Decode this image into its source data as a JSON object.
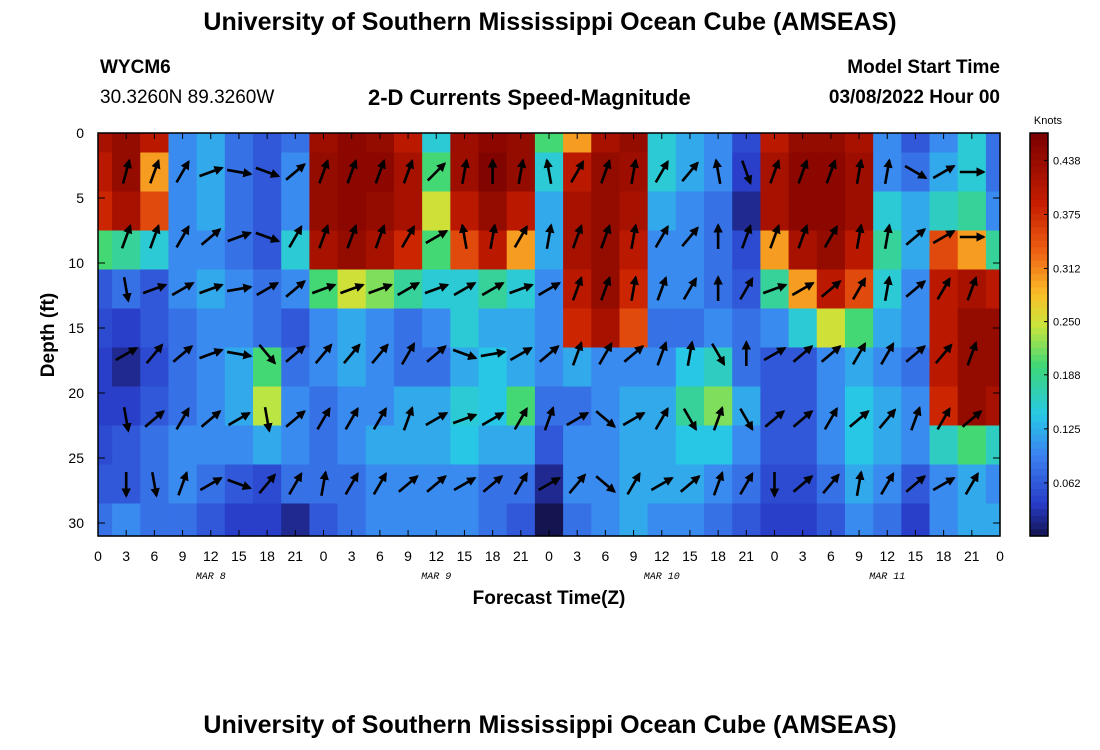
{
  "header": {
    "title": "University of Southern Mississippi Ocean Cube (AMSEAS)",
    "station_id": "WYCM6",
    "station_coords": "30.3260N  89.3260W",
    "subtitle": "2-D Currents Speed-Magnitude",
    "model_start_label": "Model Start Time",
    "model_start_value": "03/08/2022 Hour 00"
  },
  "footer": {
    "title": "University of Southern Mississippi Ocean Cube (AMSEAS)"
  },
  "chart_data": {
    "type": "heatmap",
    "xlabel": "Forecast Time(Z)",
    "ylabel": "Depth (ft)",
    "x_tick_labels": [
      "0",
      "3",
      "6",
      "9",
      "12",
      "15",
      "18",
      "21",
      "0",
      "3",
      "6",
      "9",
      "12",
      "15",
      "18",
      "21",
      "0",
      "3",
      "6",
      "9",
      "12",
      "15",
      "18",
      "21",
      "0",
      "3",
      "6",
      "9",
      "12",
      "15",
      "18",
      "21",
      "0"
    ],
    "day_labels": [
      "MAR 8",
      "MAR 9",
      "MAR 10",
      "MAR 11"
    ],
    "xlim_hours": [
      0,
      96
    ],
    "ylim_ft": [
      0,
      31
    ],
    "y_ticks": [
      "0",
      "5",
      "10",
      "15",
      "20",
      "25",
      "30"
    ],
    "colorbar": {
      "unit": "Knots",
      "ticks": [
        "0.438",
        "0.375",
        "0.312",
        "0.250",
        "0.188",
        "0.125",
        "0.062"
      ],
      "range": [
        0,
        0.47
      ]
    },
    "speed_field": {
      "hours": [
        0,
        3,
        6,
        9,
        12,
        15,
        18,
        21,
        24,
        27,
        30,
        33,
        36,
        39,
        42,
        45,
        48,
        51,
        54,
        57,
        60,
        63,
        66,
        69,
        72,
        75,
        78,
        81,
        84,
        87,
        90,
        93,
        96
      ],
      "depths_ft": [
        0,
        3,
        6,
        9,
        12,
        15,
        18,
        21,
        24,
        27,
        30
      ],
      "values": [
        [
          0.42,
          0.44,
          0.4,
          0.1,
          0.12,
          0.08,
          0.06,
          0.08,
          0.43,
          0.45,
          0.44,
          0.4,
          0.15,
          0.43,
          0.45,
          0.44,
          0.2,
          0.3,
          0.42,
          0.44,
          0.15,
          0.12,
          0.1,
          0.05,
          0.4,
          0.44,
          0.44,
          0.42,
          0.1,
          0.06,
          0.1,
          0.15,
          0.08
        ],
        [
          0.4,
          0.44,
          0.3,
          0.1,
          0.12,
          0.08,
          0.06,
          0.1,
          0.44,
          0.45,
          0.45,
          0.42,
          0.2,
          0.43,
          0.46,
          0.44,
          0.15,
          0.4,
          0.44,
          0.43,
          0.15,
          0.12,
          0.1,
          0.04,
          0.42,
          0.45,
          0.45,
          0.43,
          0.1,
          0.08,
          0.12,
          0.15,
          0.08
        ],
        [
          0.38,
          0.42,
          0.35,
          0.1,
          0.12,
          0.08,
          0.06,
          0.1,
          0.44,
          0.45,
          0.44,
          0.42,
          0.25,
          0.4,
          0.44,
          0.4,
          0.12,
          0.42,
          0.44,
          0.42,
          0.12,
          0.1,
          0.08,
          0.02,
          0.42,
          0.45,
          0.45,
          0.43,
          0.15,
          0.12,
          0.16,
          0.18,
          0.1
        ],
        [
          0.2,
          0.18,
          0.15,
          0.1,
          0.1,
          0.08,
          0.06,
          0.15,
          0.42,
          0.44,
          0.42,
          0.38,
          0.2,
          0.35,
          0.4,
          0.3,
          0.12,
          0.42,
          0.44,
          0.4,
          0.1,
          0.1,
          0.08,
          0.05,
          0.3,
          0.42,
          0.44,
          0.4,
          0.18,
          0.12,
          0.35,
          0.3,
          0.18
        ],
        [
          0.06,
          0.08,
          0.06,
          0.1,
          0.12,
          0.1,
          0.08,
          0.1,
          0.2,
          0.25,
          0.22,
          0.18,
          0.15,
          0.15,
          0.18,
          0.15,
          0.1,
          0.4,
          0.44,
          0.38,
          0.1,
          0.1,
          0.08,
          0.06,
          0.18,
          0.3,
          0.4,
          0.35,
          0.15,
          0.1,
          0.4,
          0.42,
          0.4
        ],
        [
          0.05,
          0.04,
          0.06,
          0.08,
          0.1,
          0.1,
          0.08,
          0.06,
          0.1,
          0.12,
          0.1,
          0.08,
          0.1,
          0.15,
          0.12,
          0.12,
          0.1,
          0.38,
          0.42,
          0.35,
          0.08,
          0.08,
          0.1,
          0.08,
          0.1,
          0.15,
          0.25,
          0.2,
          0.12,
          0.1,
          0.4,
          0.44,
          0.44
        ],
        [
          0.04,
          0.02,
          0.05,
          0.08,
          0.1,
          0.12,
          0.2,
          0.08,
          0.1,
          0.12,
          0.1,
          0.08,
          0.08,
          0.12,
          0.14,
          0.12,
          0.1,
          0.12,
          0.1,
          0.1,
          0.1,
          0.14,
          0.16,
          0.08,
          0.06,
          0.06,
          0.1,
          0.12,
          0.1,
          0.08,
          0.4,
          0.44,
          0.44
        ],
        [
          0.04,
          0.04,
          0.06,
          0.08,
          0.1,
          0.12,
          0.24,
          0.1,
          0.08,
          0.1,
          0.1,
          0.12,
          0.12,
          0.15,
          0.14,
          0.2,
          0.08,
          0.08,
          0.1,
          0.12,
          0.12,
          0.18,
          0.22,
          0.12,
          0.06,
          0.06,
          0.1,
          0.14,
          0.12,
          0.1,
          0.38,
          0.44,
          0.42
        ],
        [
          0.05,
          0.06,
          0.08,
          0.1,
          0.1,
          0.1,
          0.12,
          0.1,
          0.08,
          0.1,
          0.12,
          0.12,
          0.12,
          0.14,
          0.12,
          0.12,
          0.06,
          0.1,
          0.1,
          0.12,
          0.12,
          0.14,
          0.14,
          0.1,
          0.06,
          0.06,
          0.1,
          0.14,
          0.12,
          0.1,
          0.16,
          0.2,
          0.16
        ],
        [
          0.06,
          0.06,
          0.08,
          0.1,
          0.08,
          0.06,
          0.05,
          0.08,
          0.08,
          0.08,
          0.1,
          0.1,
          0.1,
          0.1,
          0.08,
          0.08,
          0.02,
          0.1,
          0.1,
          0.12,
          0.12,
          0.12,
          0.1,
          0.08,
          0.05,
          0.05,
          0.08,
          0.12,
          0.1,
          0.06,
          0.1,
          0.12,
          0.1
        ],
        [
          0.08,
          0.1,
          0.08,
          0.08,
          0.06,
          0.04,
          0.04,
          0.02,
          0.06,
          0.08,
          0.1,
          0.1,
          0.1,
          0.1,
          0.08,
          0.06,
          0.0,
          0.08,
          0.1,
          0.12,
          0.1,
          0.1,
          0.08,
          0.06,
          0.04,
          0.04,
          0.06,
          0.1,
          0.08,
          0.04,
          0.1,
          0.12,
          0.12
        ]
      ]
    },
    "vectors": {
      "hours": [
        3,
        6,
        9,
        12,
        15,
        18,
        21,
        24,
        27,
        30,
        33,
        36,
        39,
        42,
        45,
        48,
        51,
        54,
        57,
        60,
        63,
        66,
        69,
        72,
        75,
        78,
        81,
        84,
        87,
        90,
        93
      ],
      "depths_ft": [
        3,
        8,
        12,
        17,
        22,
        27
      ],
      "angles_deg": [
        [
          75,
          70,
          60,
          20,
          -10,
          -20,
          40,
          70,
          70,
          70,
          70,
          45,
          80,
          90,
          80,
          100,
          60,
          70,
          80,
          60,
          50,
          100,
          -70,
          70,
          70,
          70,
          80,
          80,
          -30,
          30,
          0
        ],
        [
          70,
          70,
          60,
          40,
          20,
          -20,
          60,
          70,
          70,
          70,
          60,
          30,
          100,
          80,
          60,
          80,
          70,
          70,
          80,
          60,
          50,
          90,
          70,
          70,
          70,
          60,
          80,
          80,
          40,
          30,
          0
        ],
        [
          -80,
          20,
          30,
          20,
          10,
          30,
          40,
          20,
          20,
          20,
          30,
          20,
          30,
          30,
          20,
          30,
          70,
          70,
          80,
          70,
          60,
          90,
          60,
          20,
          30,
          40,
          60,
          80,
          40,
          60,
          70
        ],
        [
          30,
          50,
          40,
          20,
          -10,
          -50,
          40,
          50,
          50,
          50,
          60,
          40,
          -20,
          10,
          30,
          40,
          70,
          60,
          40,
          70,
          80,
          -60,
          90,
          30,
          40,
          40,
          60,
          60,
          40,
          50,
          70
        ],
        [
          -80,
          40,
          60,
          40,
          30,
          -80,
          40,
          60,
          60,
          60,
          70,
          30,
          20,
          30,
          60,
          70,
          30,
          -40,
          30,
          60,
          -60,
          70,
          -60,
          40,
          40,
          60,
          40,
          50,
          70,
          60,
          40
        ],
        [
          -90,
          -80,
          70,
          30,
          -20,
          50,
          60,
          80,
          60,
          60,
          40,
          40,
          30,
          40,
          60,
          30,
          50,
          -40,
          60,
          30,
          40,
          70,
          60,
          -90,
          40,
          50,
          80,
          60,
          40,
          30,
          60
        ]
      ]
    }
  }
}
